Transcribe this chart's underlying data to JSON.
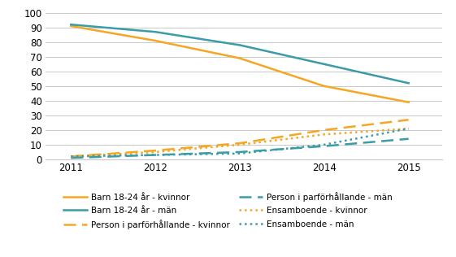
{
  "years": [
    2011,
    2012,
    2013,
    2014,
    2015
  ],
  "barn_kvinnor": [
    91,
    81,
    69,
    50,
    39
  ],
  "barn_man": [
    92,
    87,
    78,
    65,
    52
  ],
  "par_kvinnor": [
    2,
    6,
    11,
    20,
    27
  ],
  "par_man": [
    1,
    3,
    5,
    9,
    14
  ],
  "ensam_kvinnor": [
    2,
    5,
    10,
    17,
    21
  ],
  "ensam_man": [
    2,
    3,
    4,
    10,
    21
  ],
  "color_orange": "#f5a623",
  "color_teal": "#3a9ca6",
  "ylim": [
    0,
    100
  ],
  "yticks": [
    0,
    10,
    20,
    30,
    40,
    50,
    60,
    70,
    80,
    90,
    100
  ],
  "legend_barn_kvinnor": "Barn 18-24 år - kvinnor",
  "legend_barn_man": "Barn 18-24 år - män",
  "legend_par_kvinnor": "Person i parförhållande - kvinnor",
  "legend_par_man": "Person i parförhållande - män",
  "legend_ensam_kvinnor": "Ensamboende - kvinnor",
  "legend_ensam_man": "Ensamboende - män",
  "figsize": [
    5.61,
    3.16
  ],
  "dpi": 100
}
